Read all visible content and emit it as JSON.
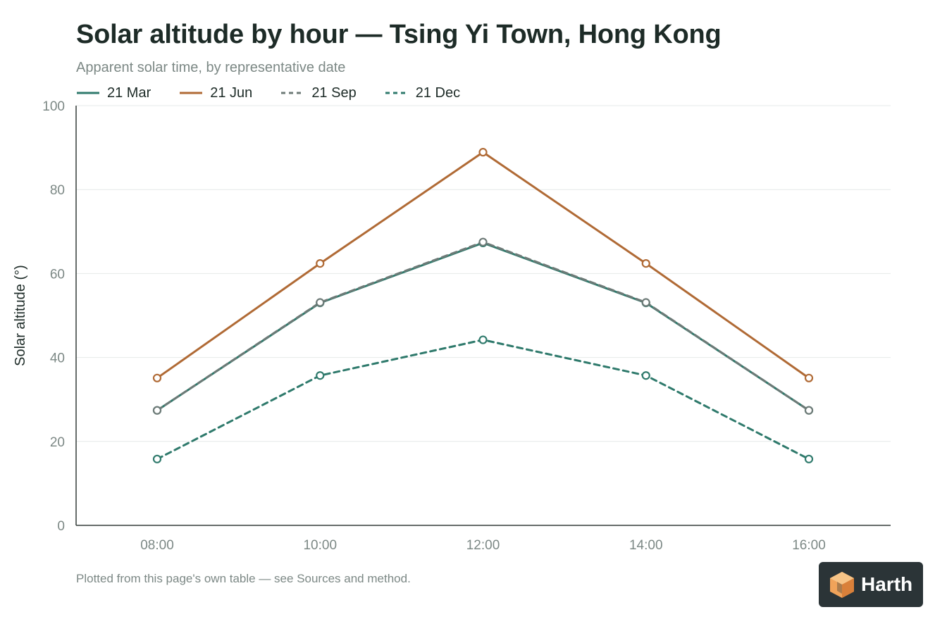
{
  "header": {
    "title": "Solar altitude by hour — Tsing Yi Town, Hong Kong",
    "subtitle": "Apparent solar time, by representative date"
  },
  "footer": {
    "note": "Plotted from this page's own table — see Sources and method."
  },
  "brand": {
    "name": "Harth",
    "logo_icon": "cube-icon"
  },
  "colors": {
    "teal": "#2f7a6c",
    "orange": "#b06a35",
    "gray": "#6d7a77",
    "grid": "#e6e9e8",
    "axis": "#333b39",
    "tick_text": "#7c8885"
  },
  "chart_data": {
    "type": "line",
    "title": "Solar altitude by hour — Tsing Yi Town, Hong Kong",
    "subtitle": "Apparent solar time, by representative date",
    "xlabel": "",
    "ylabel": "Solar altitude (°)",
    "categories": [
      "08:00",
      "10:00",
      "12:00",
      "14:00",
      "16:00"
    ],
    "ylim": [
      0,
      100
    ],
    "yticks": [
      0,
      20,
      40,
      60,
      80,
      100
    ],
    "grid": true,
    "legend_position": "top-left",
    "series": [
      {
        "name": "21 Mar",
        "values": [
          27.4,
          53.0,
          67.3,
          53.0,
          27.4
        ],
        "color": "#2f7a6c",
        "dash": "solid"
      },
      {
        "name": "21 Jun",
        "values": [
          35.1,
          62.4,
          88.9,
          62.4,
          35.1
        ],
        "color": "#b06a35",
        "dash": "solid"
      },
      {
        "name": "21 Sep",
        "values": [
          27.4,
          53.1,
          67.5,
          53.1,
          27.4
        ],
        "color": "#6d7a77",
        "dash": "dashed"
      },
      {
        "name": "21 Dec",
        "values": [
          15.8,
          35.7,
          44.2,
          35.7,
          15.8
        ],
        "color": "#2f7a6c",
        "dash": "dashed"
      }
    ]
  }
}
